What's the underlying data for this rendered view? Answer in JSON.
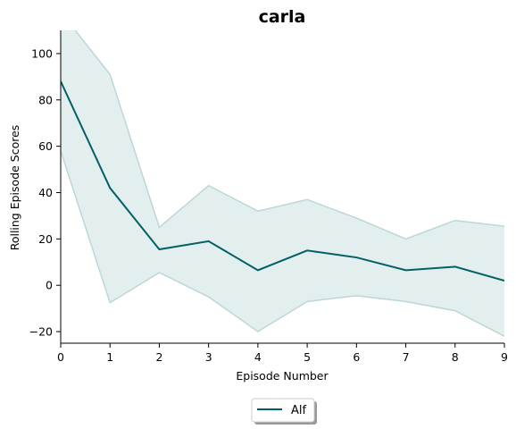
{
  "chart_data": {
    "type": "line",
    "title": "carla",
    "xlabel": "Episode Number",
    "ylabel": "Rolling Episode Scores",
    "xlim": [
      0,
      9
    ],
    "ylim": [
      -25,
      110
    ],
    "x_ticks": [
      "0",
      "1",
      "2",
      "3",
      "4",
      "5",
      "6",
      "7",
      "8",
      "9"
    ],
    "y_ticks": [
      "−20",
      "0",
      "20",
      "40",
      "60",
      "80",
      "100"
    ],
    "y_tick_values": [
      -20,
      0,
      20,
      40,
      60,
      80,
      100
    ],
    "grid": false,
    "legend_position": "bottom-center",
    "series": [
      {
        "name": "Alf",
        "color": "#036166",
        "x": [
          0,
          1,
          2,
          3,
          4,
          5,
          6,
          7,
          8,
          9
        ],
        "values": [
          88,
          42,
          15.5,
          19,
          6.5,
          15,
          12,
          6.5,
          8,
          2
        ],
        "upper": [
          118,
          91,
          25,
          43,
          32,
          37,
          29,
          20,
          28,
          25.5
        ],
        "lower": [
          58,
          -7.5,
          5.5,
          -5,
          -20,
          -7,
          -4.5,
          -7,
          -11,
          -22
        ],
        "band_color": "#e3eeee",
        "band_edge_color": "#bcd7d7"
      }
    ]
  }
}
